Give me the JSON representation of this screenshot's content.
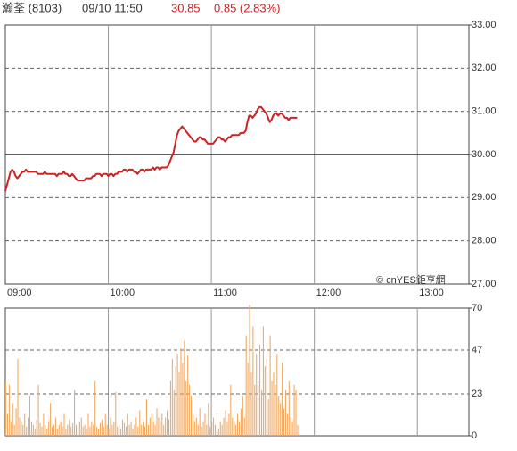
{
  "header": {
    "name": "瀚荃 (8103)",
    "time": "09/10 11:50",
    "price": "30.85",
    "change": "0.85 (2.83%)"
  },
  "credit": "© cnYES鉅亨網",
  "chart_data": [
    {
      "type": "line",
      "color": "#cc2222",
      "reference": 30,
      "grid": true,
      "xlim": [
        "09:00",
        "13:30"
      ],
      "xticks": [
        "09:00",
        "10:00",
        "11:00",
        "12:00",
        "13:00"
      ],
      "ylim": [
        27,
        33
      ],
      "yticks": [
        {
          "value": 27,
          "label": "27.00"
        },
        {
          "value": 28,
          "label": "28.00"
        },
        {
          "value": 29,
          "label": "29.00"
        },
        {
          "value": 30,
          "label": "30.00"
        },
        {
          "value": 31,
          "label": "31.00"
        },
        {
          "value": 32,
          "label": "32.00"
        },
        {
          "value": 33,
          "label": "33.00"
        }
      ],
      "x": [
        "09:00",
        "09:01",
        "09:02",
        "09:03",
        "09:04",
        "09:05",
        "09:06",
        "09:07",
        "09:08",
        "09:09",
        "09:10",
        "09:11",
        "09:12",
        "09:13",
        "09:14",
        "09:15",
        "09:16",
        "09:17",
        "09:18",
        "09:19",
        "09:20",
        "09:21",
        "09:22",
        "09:23",
        "09:24",
        "09:25",
        "09:26",
        "09:27",
        "09:28",
        "09:29",
        "09:30",
        "09:31",
        "09:32",
        "09:33",
        "09:34",
        "09:35",
        "09:36",
        "09:37",
        "09:38",
        "09:39",
        "09:40",
        "09:41",
        "09:42",
        "09:43",
        "09:44",
        "09:45",
        "09:46",
        "09:47",
        "09:48",
        "09:49",
        "09:50",
        "09:51",
        "09:52",
        "09:53",
        "09:54",
        "09:55",
        "09:56",
        "09:57",
        "09:58",
        "09:59",
        "10:00",
        "10:01",
        "10:02",
        "10:03",
        "10:04",
        "10:05",
        "10:06",
        "10:07",
        "10:08",
        "10:09",
        "10:10",
        "10:11",
        "10:12",
        "10:13",
        "10:14",
        "10:15",
        "10:16",
        "10:17",
        "10:18",
        "10:19",
        "10:20",
        "10:21",
        "10:22",
        "10:23",
        "10:24",
        "10:25",
        "10:26",
        "10:27",
        "10:28",
        "10:29",
        "10:30",
        "10:31",
        "10:32",
        "10:33",
        "10:34",
        "10:35",
        "10:36",
        "10:37",
        "10:38",
        "10:39",
        "10:40",
        "10:41",
        "10:42",
        "10:43",
        "10:44",
        "10:45",
        "10:46",
        "10:47",
        "10:48",
        "10:49",
        "10:50",
        "10:51",
        "10:52",
        "10:53",
        "10:54",
        "10:55",
        "10:56",
        "10:57",
        "10:58",
        "10:59",
        "11:00",
        "11:01",
        "11:02",
        "11:03",
        "11:04",
        "11:05",
        "11:06",
        "11:07",
        "11:08",
        "11:09",
        "11:10",
        "11:11",
        "11:12",
        "11:13",
        "11:14",
        "11:15",
        "11:16",
        "11:17",
        "11:18",
        "11:19",
        "11:20",
        "11:21",
        "11:22",
        "11:23",
        "11:24",
        "11:25",
        "11:26",
        "11:27",
        "11:28",
        "11:29",
        "11:30",
        "11:31",
        "11:32",
        "11:33",
        "11:34",
        "11:35",
        "11:36",
        "11:37",
        "11:38",
        "11:39",
        "11:40",
        "11:41",
        "11:42",
        "11:43",
        "11:44",
        "11:45",
        "11:46",
        "11:47",
        "11:48",
        "11:49",
        "11:50"
      ],
      "values": [
        29.15,
        29.3,
        29.45,
        29.6,
        29.65,
        29.6,
        29.5,
        29.45,
        29.5,
        29.55,
        29.6,
        29.6,
        29.65,
        29.6,
        29.6,
        29.6,
        29.6,
        29.6,
        29.6,
        29.55,
        29.55,
        29.55,
        29.55,
        29.6,
        29.55,
        29.55,
        29.55,
        29.55,
        29.55,
        29.55,
        29.5,
        29.55,
        29.55,
        29.55,
        29.6,
        29.55,
        29.55,
        29.5,
        29.5,
        29.55,
        29.5,
        29.45,
        29.4,
        29.4,
        29.4,
        29.4,
        29.4,
        29.45,
        29.45,
        29.45,
        29.45,
        29.5,
        29.5,
        29.55,
        29.55,
        29.55,
        29.5,
        29.55,
        29.55,
        29.55,
        29.5,
        29.55,
        29.55,
        29.5,
        29.55,
        29.55,
        29.6,
        29.6,
        29.6,
        29.65,
        29.65,
        29.6,
        29.65,
        29.65,
        29.65,
        29.6,
        29.6,
        29.55,
        29.6,
        29.65,
        29.65,
        29.6,
        29.65,
        29.65,
        29.65,
        29.65,
        29.7,
        29.65,
        29.7,
        29.7,
        29.65,
        29.7,
        29.7,
        29.7,
        29.7,
        29.75,
        29.85,
        29.95,
        30.05,
        30.25,
        30.45,
        30.55,
        30.6,
        30.65,
        30.6,
        30.55,
        30.5,
        30.45,
        30.4,
        30.35,
        30.3,
        30.3,
        30.35,
        30.4,
        30.4,
        30.35,
        30.35,
        30.3,
        30.25,
        30.25,
        30.25,
        30.25,
        30.3,
        30.35,
        30.4,
        30.4,
        30.35,
        30.35,
        30.3,
        30.35,
        30.4,
        30.4,
        30.45,
        30.45,
        30.45,
        30.45,
        30.45,
        30.5,
        30.5,
        30.5,
        30.55,
        30.75,
        30.9,
        30.9,
        30.85,
        30.9,
        30.95,
        31.05,
        31.1,
        31.1,
        31.05,
        31.0,
        30.95,
        30.85,
        30.75,
        30.8,
        30.9,
        30.95,
        30.95,
        30.9,
        30.95,
        30.95,
        30.9,
        30.85,
        30.85,
        30.8,
        30.85,
        30.85,
        30.85,
        30.85,
        30.85
      ]
    },
    {
      "type": "bar",
      "color": "#f0a860",
      "grid": true,
      "xlim": [
        "09:00",
        "13:30"
      ],
      "xticks": [
        "09:00",
        "10:00",
        "11:00",
        "12:00",
        "13:00"
      ],
      "ylim": [
        0,
        70
      ],
      "yticks": [
        0,
        23,
        47,
        70
      ],
      "x": [
        "09:00",
        "09:01",
        "09:02",
        "09:03",
        "09:04",
        "09:05",
        "09:06",
        "09:07",
        "09:08",
        "09:09",
        "09:10",
        "09:11",
        "09:12",
        "09:13",
        "09:14",
        "09:15",
        "09:16",
        "09:17",
        "09:18",
        "09:19",
        "09:20",
        "09:21",
        "09:22",
        "09:23",
        "09:24",
        "09:25",
        "09:26",
        "09:27",
        "09:28",
        "09:29",
        "09:30",
        "09:31",
        "09:32",
        "09:33",
        "09:34",
        "09:35",
        "09:36",
        "09:37",
        "09:38",
        "09:39",
        "09:40",
        "09:41",
        "09:42",
        "09:43",
        "09:44",
        "09:45",
        "09:46",
        "09:47",
        "09:48",
        "09:49",
        "09:50",
        "09:51",
        "09:52",
        "09:53",
        "09:54",
        "09:55",
        "09:56",
        "09:57",
        "09:58",
        "09:59",
        "10:00",
        "10:01",
        "10:02",
        "10:03",
        "10:04",
        "10:05",
        "10:06",
        "10:07",
        "10:08",
        "10:09",
        "10:10",
        "10:11",
        "10:12",
        "10:13",
        "10:14",
        "10:15",
        "10:16",
        "10:17",
        "10:18",
        "10:19",
        "10:20",
        "10:21",
        "10:22",
        "10:23",
        "10:24",
        "10:25",
        "10:26",
        "10:27",
        "10:28",
        "10:29",
        "10:30",
        "10:31",
        "10:32",
        "10:33",
        "10:34",
        "10:35",
        "10:36",
        "10:37",
        "10:38",
        "10:39",
        "10:40",
        "10:41",
        "10:42",
        "10:43",
        "10:44",
        "10:45",
        "10:46",
        "10:47",
        "10:48",
        "10:49",
        "10:50",
        "10:51",
        "10:52",
        "10:53",
        "10:54",
        "10:55",
        "10:56",
        "10:57",
        "10:58",
        "10:59",
        "11:00",
        "11:01",
        "11:02",
        "11:03",
        "11:04",
        "11:05",
        "11:06",
        "11:07",
        "11:08",
        "11:09",
        "11:10",
        "11:11",
        "11:12",
        "11:13",
        "11:14",
        "11:15",
        "11:16",
        "11:17",
        "11:18",
        "11:19",
        "11:20",
        "11:21",
        "11:22",
        "11:23",
        "11:24",
        "11:25",
        "11:26",
        "11:27",
        "11:28",
        "11:29",
        "11:30",
        "11:31",
        "11:32",
        "11:33",
        "11:34",
        "11:35",
        "11:36",
        "11:37",
        "11:38",
        "11:39",
        "11:40",
        "11:41",
        "11:42",
        "11:43",
        "11:44",
        "11:45",
        "11:46",
        "11:47",
        "11:48",
        "11:49",
        "11:50"
      ],
      "values": [
        30,
        12,
        28,
        8,
        18,
        6,
        15,
        42,
        10,
        8,
        6,
        12,
        5,
        10,
        22,
        8,
        6,
        4,
        9,
        28,
        7,
        5,
        12,
        6,
        4,
        8,
        18,
        5,
        6,
        10,
        4,
        6,
        8,
        5,
        12,
        4,
        6,
        9,
        5,
        7,
        25,
        6,
        4,
        8,
        10,
        5,
        6,
        4,
        12,
        5,
        8,
        6,
        30,
        5,
        4,
        7,
        9,
        5,
        12,
        6,
        4,
        10,
        6,
        8,
        24,
        5,
        6,
        4,
        9,
        7,
        5,
        12,
        6,
        8,
        4,
        6,
        10,
        5,
        14,
        6,
        8,
        5,
        20,
        6,
        10,
        12,
        8,
        6,
        15,
        10,
        8,
        12,
        6,
        10,
        14,
        9,
        30,
        42,
        25,
        38,
        45,
        35,
        48,
        40,
        52,
        30,
        44,
        28,
        22,
        12,
        8,
        10,
        6,
        15,
        5,
        8,
        12,
        6,
        18,
        5,
        8,
        10,
        6,
        12,
        4,
        8,
        6,
        10,
        14,
        8,
        12,
        28,
        10,
        8,
        6,
        12,
        8,
        15,
        22,
        10,
        55,
        40,
        72,
        35,
        60,
        28,
        45,
        30,
        50,
        25,
        60,
        38,
        42,
        20,
        55,
        30,
        35,
        28,
        45,
        22,
        18,
        40,
        15,
        25,
        12,
        30,
        10,
        8,
        28,
        25,
        6
      ]
    }
  ]
}
